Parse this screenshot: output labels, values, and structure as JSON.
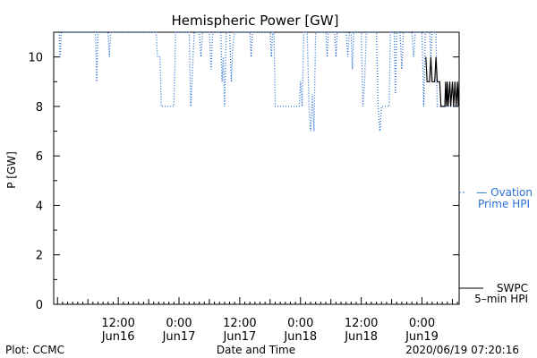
{
  "chart_data": {
    "type": "line",
    "title": "Hemispheric Power [GW]",
    "ylabel": "P [GW]",
    "xlabel": "Date and Time",
    "ylim": [
      0,
      11
    ],
    "yticks": [
      0,
      2,
      4,
      6,
      8,
      10
    ],
    "xlim": [
      "2020-06-15T23:15",
      "2020-06-19T07:20"
    ],
    "xticks": [
      {
        "time": "2020-06-16T12:00",
        "line1": "12:00",
        "line2": "Jun16"
      },
      {
        "time": "2020-06-17T00:00",
        "line1": "0:00",
        "line2": "Jun17"
      },
      {
        "time": "2020-06-17T12:00",
        "line1": "12:00",
        "line2": "Jun17"
      },
      {
        "time": "2020-06-18T00:00",
        "line1": "0:00",
        "line2": "Jun18"
      },
      {
        "time": "2020-06-18T12:00",
        "line1": "12:00",
        "line2": "Jun18"
      },
      {
        "time": "2020-06-19T00:00",
        "line1": "0:00",
        "line2": "Jun19"
      }
    ],
    "grid": false,
    "series": [
      {
        "name": "— Ovation Prime HPI",
        "legend_lines": [
          "— Ovation",
          "Prime HPI"
        ],
        "color": "#2a6fd6",
        "style": "dotted",
        "points": [
          [
            "2020-06-16T00:20",
            11
          ],
          [
            "2020-06-16T00:30",
            10
          ],
          [
            "2020-06-16T00:45",
            11
          ],
          [
            "2020-06-16T07:30",
            11
          ],
          [
            "2020-06-16T07:45",
            9
          ],
          [
            "2020-06-16T08:00",
            11
          ],
          [
            "2020-06-16T10:00",
            11
          ],
          [
            "2020-06-16T10:15",
            10
          ],
          [
            "2020-06-16T10:30",
            11
          ],
          [
            "2020-06-16T19:30",
            11
          ],
          [
            "2020-06-16T19:45",
            10
          ],
          [
            "2020-06-16T20:15",
            10
          ],
          [
            "2020-06-16T20:30",
            8
          ],
          [
            "2020-06-16T23:00",
            8
          ],
          [
            "2020-06-16T23:20",
            11
          ],
          [
            "2020-06-17T02:00",
            11
          ],
          [
            "2020-06-17T02:20",
            8
          ],
          [
            "2020-06-17T03:00",
            11
          ],
          [
            "2020-06-17T04:00",
            11
          ],
          [
            "2020-06-17T04:20",
            10
          ],
          [
            "2020-06-17T04:40",
            11
          ],
          [
            "2020-06-17T06:00",
            11
          ],
          [
            "2020-06-17T06:20",
            9.5
          ],
          [
            "2020-06-17T06:40",
            11
          ],
          [
            "2020-06-17T08:15",
            11
          ],
          [
            "2020-06-17T08:30",
            9
          ],
          [
            "2020-06-17T08:45",
            10
          ],
          [
            "2020-06-17T09:00",
            8
          ],
          [
            "2020-06-17T09:20",
            11
          ],
          [
            "2020-06-17T10:00",
            11
          ],
          [
            "2020-06-17T10:20",
            9
          ],
          [
            "2020-06-17T10:40",
            10.5
          ],
          [
            "2020-06-17T11:00",
            11
          ],
          [
            "2020-06-17T14:00",
            11
          ],
          [
            "2020-06-17T14:15",
            10
          ],
          [
            "2020-06-17T14:30",
            11
          ],
          [
            "2020-06-17T18:00",
            11
          ],
          [
            "2020-06-17T18:15",
            10
          ],
          [
            "2020-06-17T18:30",
            11
          ],
          [
            "2020-06-17T18:45",
            11
          ],
          [
            "2020-06-17T19:00",
            8
          ],
          [
            "2020-06-17T23:45",
            8
          ],
          [
            "2020-06-18T00:00",
            9
          ],
          [
            "2020-06-18T00:20",
            8
          ],
          [
            "2020-06-18T00:40",
            11
          ],
          [
            "2020-06-18T01:20",
            11
          ],
          [
            "2020-06-18T01:40",
            8
          ],
          [
            "2020-06-18T02:00",
            7
          ],
          [
            "2020-06-18T02:20",
            8.5
          ],
          [
            "2020-06-18T02:40",
            7
          ],
          [
            "2020-06-18T03:00",
            11
          ],
          [
            "2020-06-18T05:00",
            11
          ],
          [
            "2020-06-18T05:15",
            10
          ],
          [
            "2020-06-18T05:30",
            11
          ],
          [
            "2020-06-18T06:45",
            11
          ],
          [
            "2020-06-18T07:00",
            10
          ],
          [
            "2020-06-18T07:15",
            11
          ],
          [
            "2020-06-18T09:00",
            11
          ],
          [
            "2020-06-18T09:20",
            10
          ],
          [
            "2020-06-18T09:40",
            11
          ],
          [
            "2020-06-18T10:00",
            11
          ],
          [
            "2020-06-18T10:15",
            9.5
          ],
          [
            "2020-06-18T10:30",
            11
          ],
          [
            "2020-06-18T12:00",
            11
          ],
          [
            "2020-06-18T12:20",
            8
          ],
          [
            "2020-06-18T12:40",
            9
          ],
          [
            "2020-06-18T13:00",
            11
          ],
          [
            "2020-06-18T15:00",
            11
          ],
          [
            "2020-06-18T15:20",
            8
          ],
          [
            "2020-06-18T15:40",
            7
          ],
          [
            "2020-06-18T16:00",
            8
          ],
          [
            "2020-06-18T17:30",
            8
          ],
          [
            "2020-06-18T17:45",
            11
          ],
          [
            "2020-06-18T18:30",
            11
          ],
          [
            "2020-06-18T18:45",
            8.5
          ],
          [
            "2020-06-18T19:00",
            11
          ],
          [
            "2020-06-18T19:40",
            11
          ],
          [
            "2020-06-18T20:00",
            9.5
          ],
          [
            "2020-06-18T20:20",
            11
          ],
          [
            "2020-06-18T22:00",
            11
          ],
          [
            "2020-06-18T22:20",
            10
          ],
          [
            "2020-06-18T22:40",
            11
          ],
          [
            "2020-06-19T00:00",
            11
          ],
          [
            "2020-06-19T00:20",
            8
          ],
          [
            "2020-06-19T00:40",
            11
          ],
          [
            "2020-06-19T01:30",
            11
          ],
          [
            "2020-06-19T01:45",
            10
          ],
          [
            "2020-06-19T02:00",
            11
          ],
          [
            "2020-06-19T02:45",
            11
          ],
          [
            "2020-06-19T03:00",
            8
          ],
          [
            "2020-06-19T07:20",
            8
          ]
        ]
      },
      {
        "name": "SWPC 5–min HPI",
        "legend_lines": [
          "SWPC",
          "5–min HPI"
        ],
        "color": "#000000",
        "style": "solid",
        "points": [
          [
            "2020-06-19T00:45",
            10
          ],
          [
            "2020-06-19T01:00",
            9
          ],
          [
            "2020-06-19T01:30",
            9
          ],
          [
            "2020-06-19T01:45",
            10
          ],
          [
            "2020-06-19T02:00",
            9
          ],
          [
            "2020-06-19T02:30",
            9
          ],
          [
            "2020-06-19T02:45",
            10
          ],
          [
            "2020-06-19T03:00",
            9
          ],
          [
            "2020-06-19T03:30",
            9
          ],
          [
            "2020-06-19T03:45",
            8
          ],
          [
            "2020-06-19T04:30",
            8
          ],
          [
            "2020-06-19T04:40",
            9
          ],
          [
            "2020-06-19T04:50",
            8
          ],
          [
            "2020-06-19T05:00",
            9
          ],
          [
            "2020-06-19T05:10",
            8
          ],
          [
            "2020-06-19T05:30",
            9
          ],
          [
            "2020-06-19T05:40",
            8
          ],
          [
            "2020-06-19T06:00",
            9
          ],
          [
            "2020-06-19T06:15",
            8
          ],
          [
            "2020-06-19T06:30",
            9
          ],
          [
            "2020-06-19T06:45",
            8
          ],
          [
            "2020-06-19T07:00",
            9
          ],
          [
            "2020-06-19T07:10",
            8
          ],
          [
            "2020-06-19T07:20",
            9
          ]
        ]
      }
    ]
  },
  "footer": {
    "left": "Plot: CCMC",
    "timestamp": "2020/06/19 07:20:16"
  }
}
